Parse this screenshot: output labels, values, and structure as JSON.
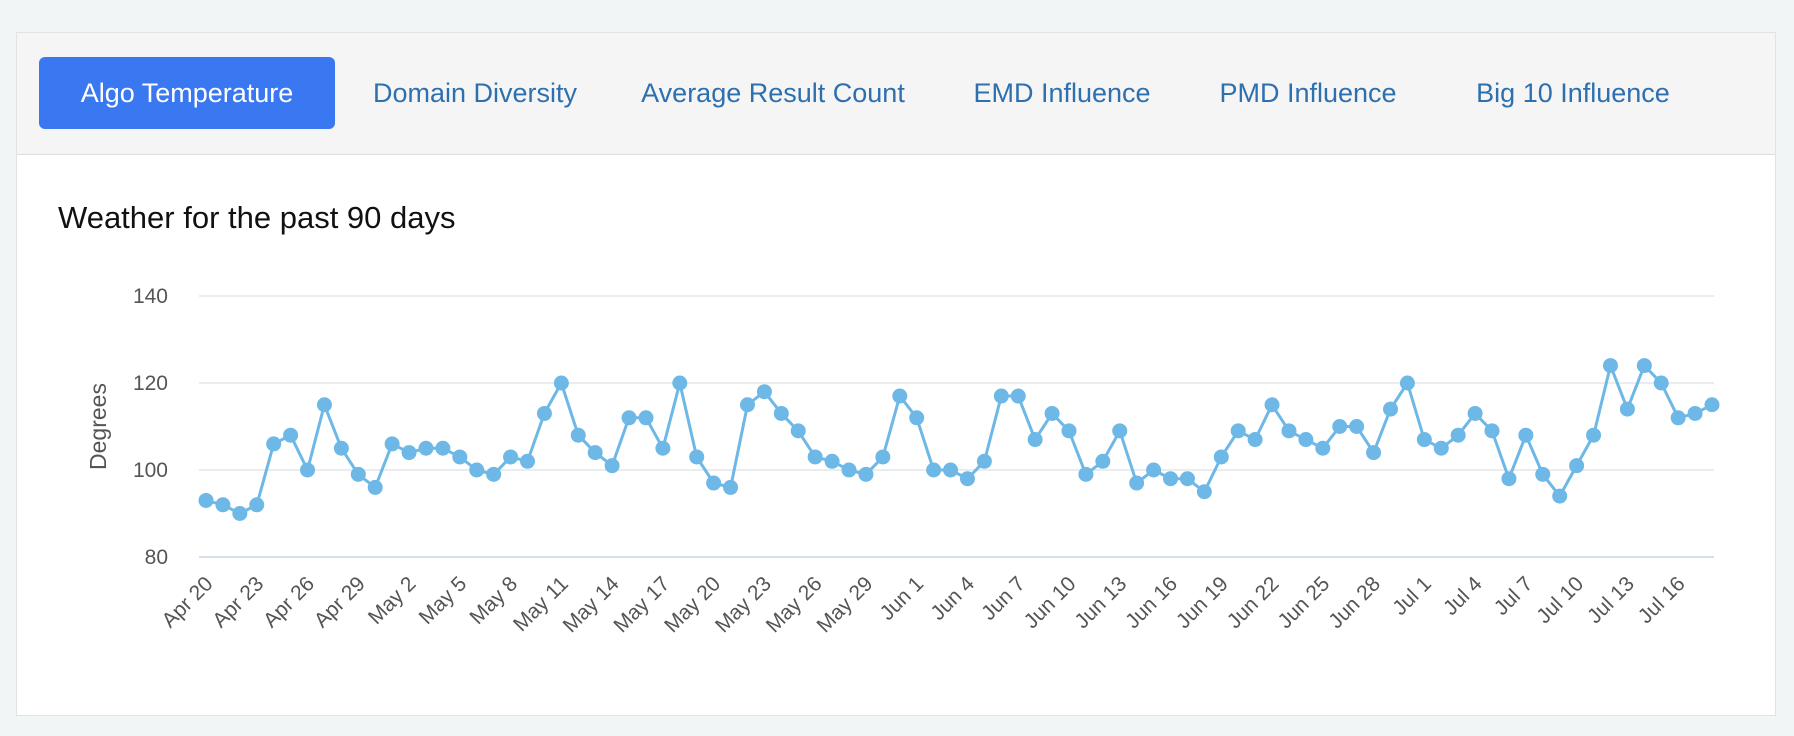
{
  "tabs": [
    {
      "label": "Algo Temperature",
      "active": true
    },
    {
      "label": "Domain Diversity",
      "active": false
    },
    {
      "label": "Average Result Count",
      "active": false
    },
    {
      "label": "EMD Influence",
      "active": false
    },
    {
      "label": "PMD Influence",
      "active": false
    },
    {
      "label": "Big 10 Influence",
      "active": false
    }
  ],
  "colors": {
    "accent": "#3a78f2",
    "tab_text": "#2e6fae",
    "series_line": "#6db8e6",
    "grid": "#e3e7ea"
  },
  "chart_data": {
    "type": "line",
    "title": "Weather for the past 90 days",
    "xlabel": "",
    "ylabel": "Degrees",
    "ylim": [
      80,
      140
    ],
    "yticks": [
      80,
      100,
      120,
      140
    ],
    "grid": true,
    "legend": "none",
    "x": [
      "Apr 20",
      "Apr 21",
      "Apr 22",
      "Apr 23",
      "Apr 24",
      "Apr 25",
      "Apr 26",
      "Apr 27",
      "Apr 28",
      "Apr 29",
      "Apr 30",
      "May 1",
      "May 2",
      "May 3",
      "May 4",
      "May 5",
      "May 6",
      "May 7",
      "May 8",
      "May 9",
      "May 10",
      "May 11",
      "May 12",
      "May 13",
      "May 14",
      "May 15",
      "May 16",
      "May 17",
      "May 18",
      "May 19",
      "May 20",
      "May 21",
      "May 22",
      "May 23",
      "May 24",
      "May 25",
      "May 26",
      "May 27",
      "May 28",
      "May 29",
      "May 30",
      "May 31",
      "Jun 1",
      "Jun 2",
      "Jun 3",
      "Jun 4",
      "Jun 5",
      "Jun 6",
      "Jun 7",
      "Jun 8",
      "Jun 9",
      "Jun 10",
      "Jun 11",
      "Jun 12",
      "Jun 13",
      "Jun 14",
      "Jun 15",
      "Jun 16",
      "Jun 17",
      "Jun 18",
      "Jun 19",
      "Jun 20",
      "Jun 21",
      "Jun 22",
      "Jun 23",
      "Jun 24",
      "Jun 25",
      "Jun 26",
      "Jun 27",
      "Jun 28",
      "Jun 29",
      "Jun 30",
      "Jul 1",
      "Jul 2",
      "Jul 3",
      "Jul 4",
      "Jul 5",
      "Jul 6",
      "Jul 7",
      "Jul 8",
      "Jul 9",
      "Jul 10",
      "Jul 11",
      "Jul 12",
      "Jul 13",
      "Jul 14",
      "Jul 15",
      "Jul 16",
      "Jul 17",
      "Jul 18"
    ],
    "xtick_labels": [
      "Apr 20",
      "Apr 23",
      "Apr 26",
      "Apr 29",
      "May 2",
      "May 5",
      "May 8",
      "May 11",
      "May 14",
      "May 17",
      "May 20",
      "May 23",
      "May 26",
      "May 29",
      "Jun 1",
      "Jun 4",
      "Jun 7",
      "Jun 10",
      "Jun 13",
      "Jun 16",
      "Jun 19",
      "Jun 22",
      "Jun 25",
      "Jun 28",
      "Jul 1",
      "Jul 4",
      "Jul 7",
      "Jul 10",
      "Jul 13",
      "Jul 16"
    ],
    "series": [
      {
        "values": [
          93,
          92,
          90,
          92,
          106,
          108,
          100,
          115,
          105,
          99,
          96,
          106,
          104,
          105,
          105,
          103,
          100,
          99,
          103,
          102,
          113,
          120,
          108,
          104,
          101,
          112,
          112,
          105,
          120,
          103,
          97,
          96,
          115,
          118,
          113,
          109,
          103,
          102,
          100,
          99,
          103,
          117,
          112,
          100,
          100,
          98,
          102,
          117,
          117,
          107,
          113,
          109,
          99,
          102,
          109,
          97,
          100,
          98,
          98,
          95,
          103,
          109,
          107,
          115,
          109,
          107,
          105,
          110,
          110,
          104,
          114,
          120,
          107,
          105,
          108,
          113,
          109,
          98,
          108,
          99,
          94,
          101,
          108,
          124,
          114,
          124,
          120,
          112,
          113,
          115
        ]
      }
    ]
  }
}
